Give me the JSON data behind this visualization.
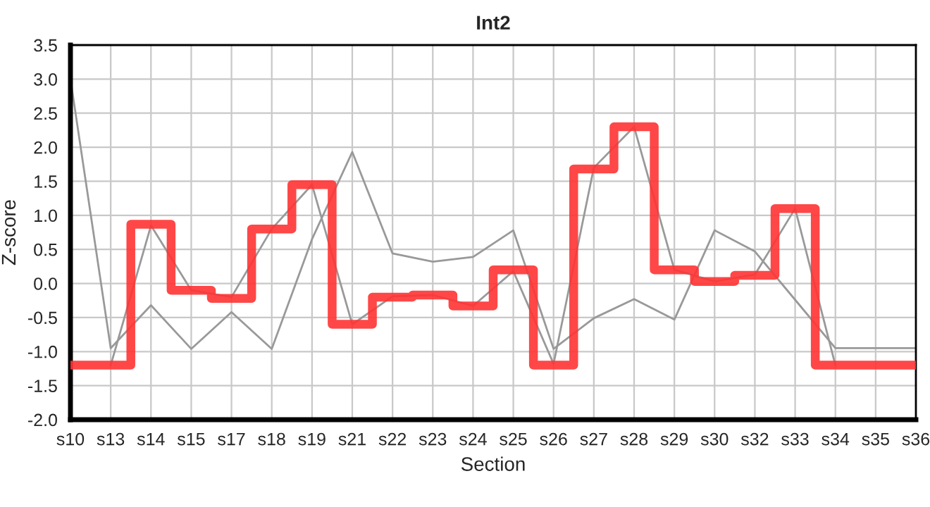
{
  "chart_data": {
    "type": "line",
    "title": "Int2",
    "xlabel": "Section",
    "ylabel": "Z-score",
    "categories": [
      "s10",
      "s13",
      "s14",
      "s15",
      "s17",
      "s18",
      "s19",
      "s21",
      "s22",
      "s23",
      "s24",
      "s25",
      "s26",
      "s27",
      "s28",
      "s29",
      "s30",
      "s32",
      "s33",
      "s34",
      "s35",
      "s36"
    ],
    "series": [
      {
        "color": "#999999",
        "values": [
          3.0,
          -0.95,
          -0.32,
          -0.96,
          -0.42,
          -0.96,
          0.65,
          1.93,
          0.44,
          0.32,
          0.39,
          0.78,
          -0.96,
          -0.51,
          -0.23,
          -0.53,
          0.78,
          0.47,
          -0.24,
          -0.95,
          -0.95,
          -0.95
        ]
      },
      {
        "color": "#999999",
        "values": [
          null,
          -1.2,
          0.85,
          -0.1,
          -0.2,
          0.8,
          1.45,
          -0.6,
          -0.19,
          -0.17,
          -0.33,
          0.18,
          -1.18,
          1.7,
          2.3,
          0.2,
          0.03,
          0.13,
          1.1,
          -1.2,
          null,
          null
        ]
      },
      {
        "type": "step",
        "color": "#ff3333",
        "values": [
          -1.2,
          -1.2,
          0.87,
          -0.1,
          -0.22,
          0.8,
          1.45,
          -0.6,
          -0.2,
          -0.17,
          -0.33,
          0.2,
          -1.2,
          1.68,
          2.3,
          0.2,
          0.03,
          0.12,
          1.1,
          -1.2,
          -1.2,
          -1.2
        ]
      }
    ],
    "ylim": [
      -2.0,
      3.5
    ],
    "yticks": [
      {
        "value": -2,
        "label": "-2.0"
      },
      {
        "value": -1.5,
        "label": "-1.5"
      },
      {
        "value": -1,
        "label": "-1.0"
      },
      {
        "value": -0.5,
        "label": "-0.5"
      },
      {
        "value": 0,
        "label": "0.0"
      },
      {
        "value": 0.5,
        "label": "0.5"
      },
      {
        "value": 1,
        "label": "1.0"
      },
      {
        "value": 1.5,
        "label": "1.5"
      },
      {
        "value": 2,
        "label": "2.0"
      },
      {
        "value": 2.5,
        "label": "2.5"
      },
      {
        "value": 3,
        "label": "3.0"
      },
      {
        "value": 3.5,
        "label": "3.5"
      }
    ],
    "grid": true
  }
}
